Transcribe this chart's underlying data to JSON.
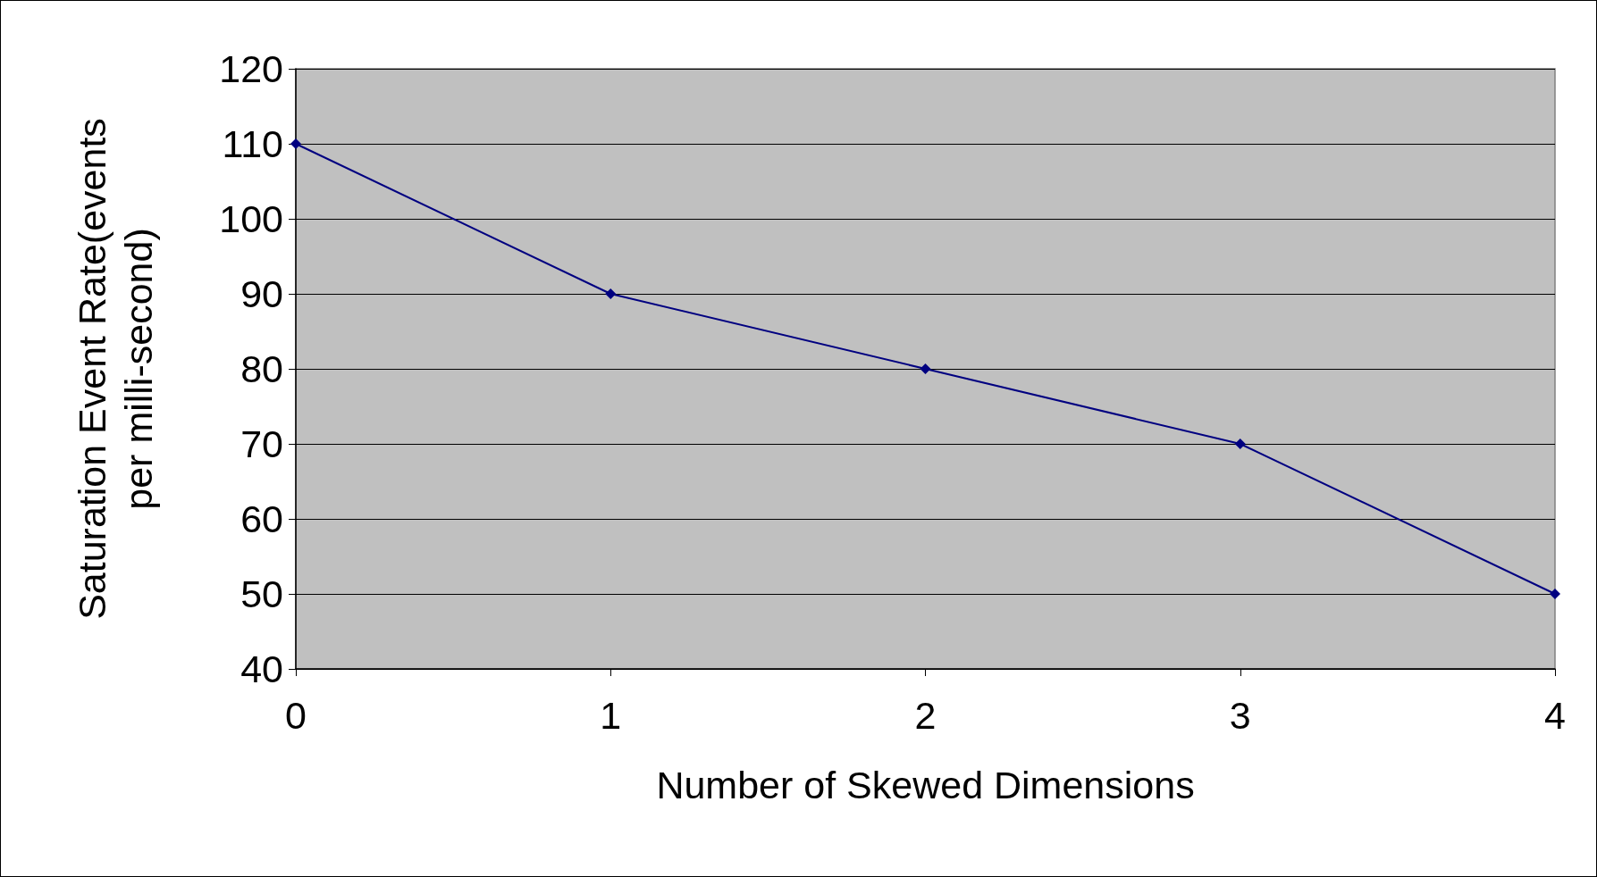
{
  "chart_data": {
    "type": "line",
    "xlabel": "Number of Skewed Dimensions",
    "ylabel": "Saturation Event Rate(events per milli-second)",
    "x": [
      0,
      1,
      2,
      3,
      4
    ],
    "series": [
      {
        "color": "#000080",
        "values": [
          110,
          90,
          80,
          70,
          50
        ]
      }
    ],
    "xlim": [
      0,
      4
    ],
    "xticks": [
      0,
      1,
      2,
      3,
      4
    ],
    "ylim": [
      40,
      120
    ],
    "yticks": [
      40,
      50,
      60,
      70,
      80,
      90,
      100,
      110,
      120
    ],
    "grid": "y",
    "marker": "diamond",
    "line_style": "solid"
  }
}
